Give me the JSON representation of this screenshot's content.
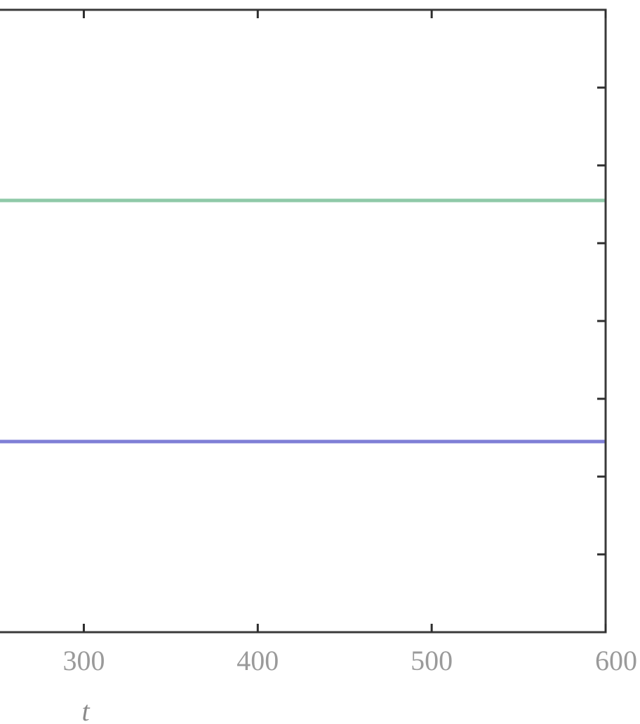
{
  "chart_data": {
    "type": "line",
    "title": "",
    "xlabel": "t",
    "ylabel": "",
    "xlim": [
      251,
      600
    ],
    "xticks": [
      300,
      400,
      500,
      600
    ],
    "xtick_labels": [
      "300",
      "400",
      "500",
      "600"
    ],
    "ylim": [
      0,
      8
    ],
    "yticks": [
      1,
      2,
      3,
      4,
      5,
      6,
      7
    ],
    "grid": false,
    "legend": "none",
    "series": [
      {
        "color": "#8fc9a8",
        "x": [
          251,
          600
        ],
        "y": [
          5.55,
          5.55
        ]
      },
      {
        "color": "#7f7fd6",
        "x": [
          251,
          600
        ],
        "y": [
          2.45,
          2.45
        ]
      }
    ]
  }
}
